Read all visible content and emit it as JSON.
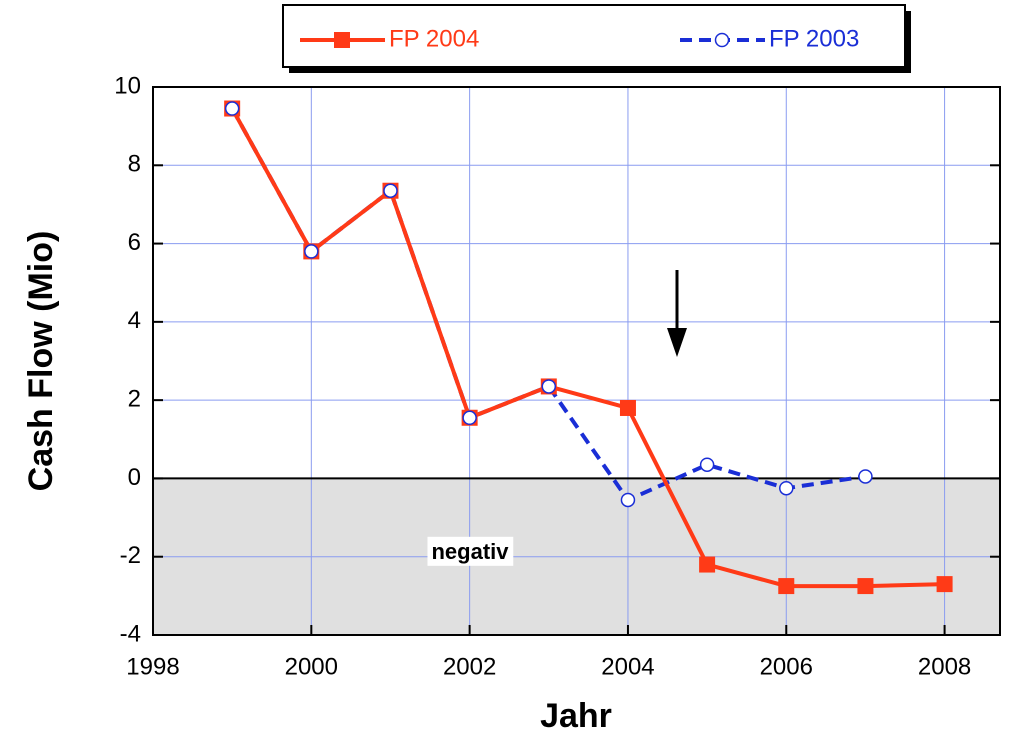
{
  "chart_data": {
    "type": "line",
    "xlabel": "Jahr",
    "ylabel": "Cash Flow (Mio)",
    "xlim": [
      1998,
      2008.7
    ],
    "xticks": [
      1998,
      2000,
      2002,
      2004,
      2006,
      2008
    ],
    "ylim": [
      -4,
      10
    ],
    "yticks": [
      -4,
      -2,
      0,
      2,
      4,
      6,
      8,
      10
    ],
    "grid": true,
    "grid_color": "#8a9cf0",
    "negative_fill": "#e0e0e0",
    "annotation": "negativ",
    "x": [
      1999,
      2000,
      2001,
      2002,
      2003,
      2004,
      2005,
      2006,
      2007,
      2008
    ],
    "series": [
      {
        "name": "FP 2004",
        "color": "#ff3a17",
        "marker": "square",
        "dash": false,
        "values": [
          9.45,
          5.8,
          7.35,
          1.55,
          2.35,
          1.8,
          -2.2,
          -2.75,
          -2.75,
          -2.7
        ]
      },
      {
        "name": "FP 2003",
        "color": "#1a2ed6",
        "marker": "circle",
        "dash": true,
        "values": [
          9.45,
          5.8,
          7.35,
          1.55,
          2.35,
          -0.55,
          0.35,
          -0.25,
          0.05,
          null
        ]
      }
    ],
    "legend": "top"
  }
}
